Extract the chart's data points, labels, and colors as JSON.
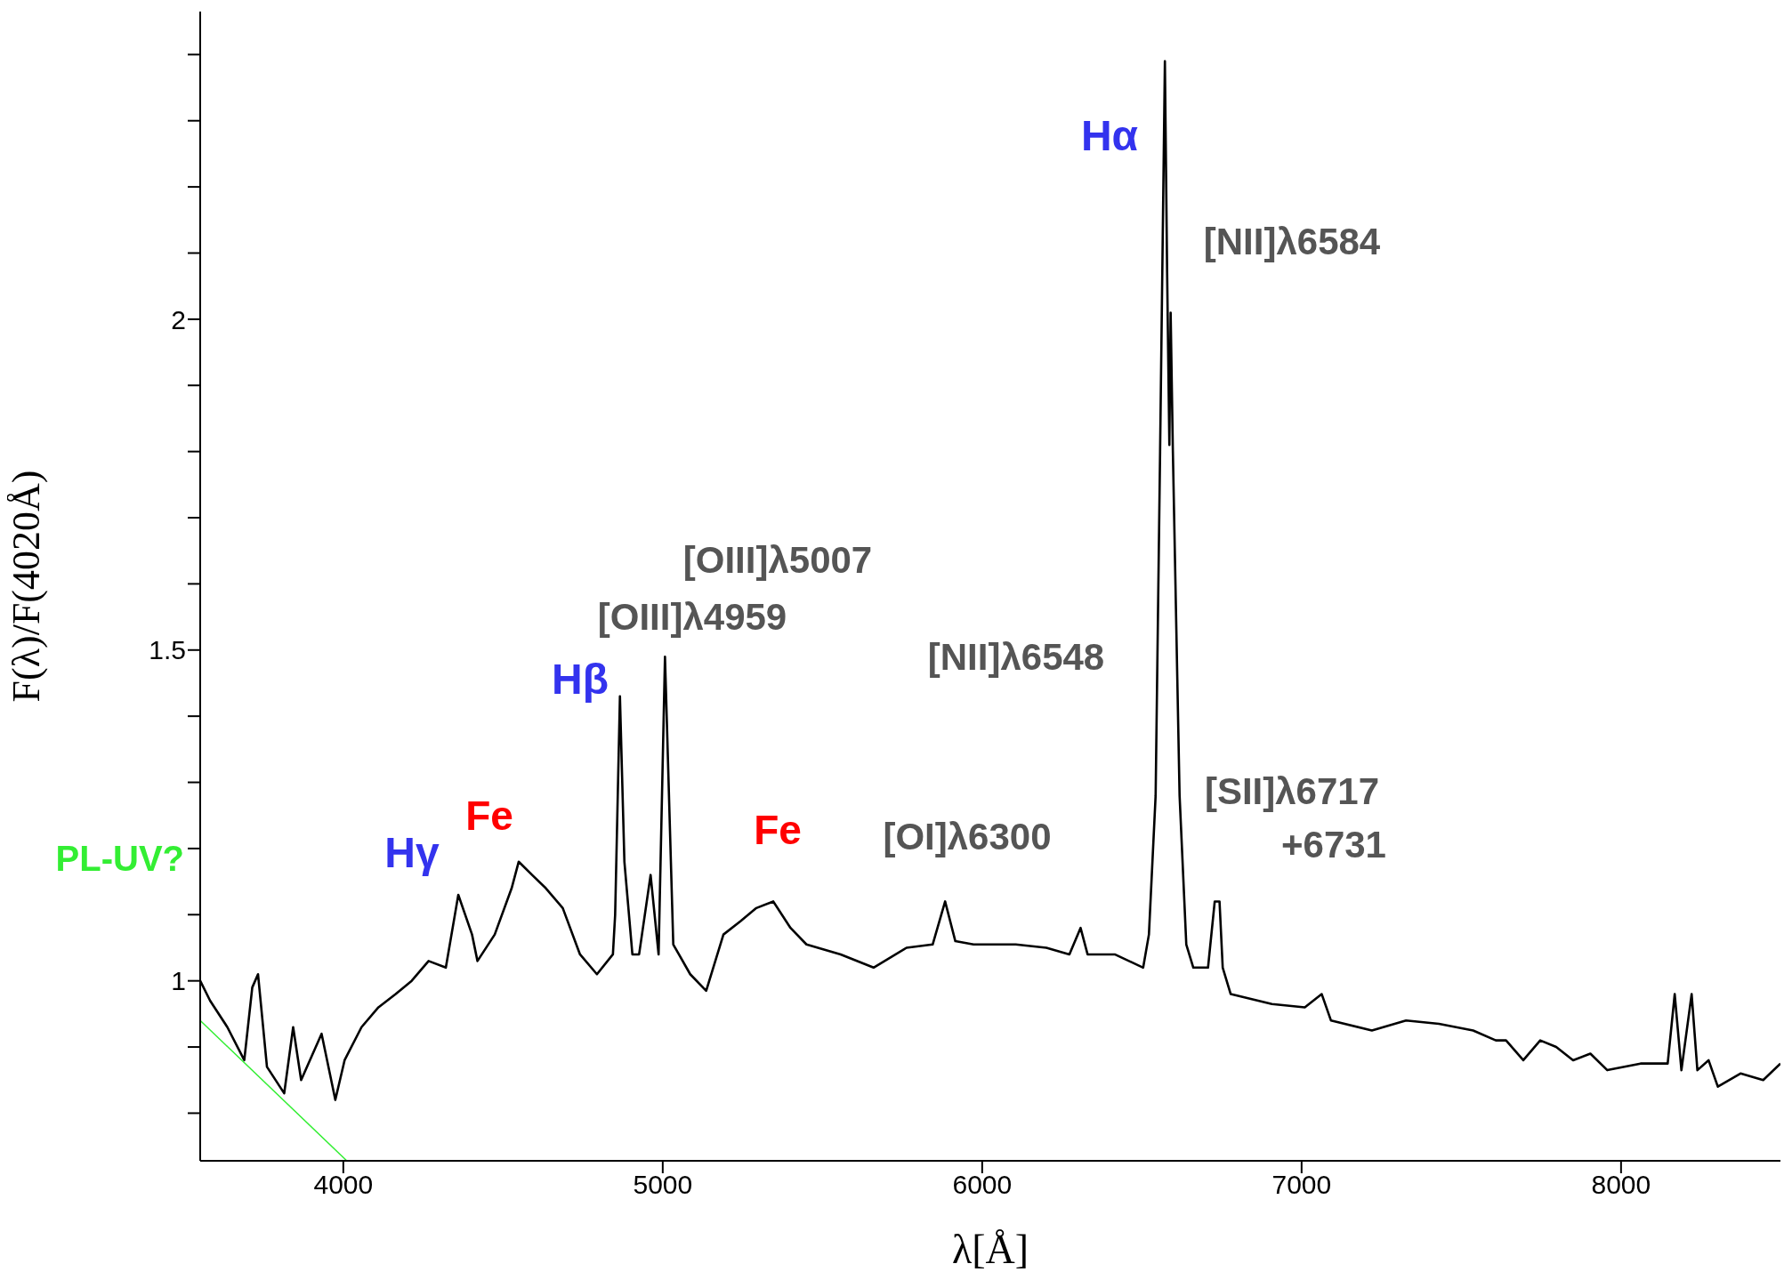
{
  "chart_data": {
    "type": "line",
    "xlabel": "λ[Å]",
    "ylabel": "F(λ)/F(4020Å)",
    "xlim": [
      3552,
      8499
    ],
    "xticks": [
      4000,
      5000,
      6000,
      7000,
      8000
    ],
    "ylim": [
      0.728,
      2.465
    ],
    "yticks": [
      {
        "value": 0.8,
        "label": null
      },
      {
        "value": 0.9,
        "label": null
      },
      1,
      {
        "value": 1.1,
        "label": null
      },
      {
        "value": 1.2,
        "label": null
      },
      {
        "value": 1.3,
        "label": null
      },
      {
        "value": 1.4,
        "label": null
      },
      1.5,
      {
        "value": 1.6,
        "label": null
      },
      {
        "value": 1.7,
        "label": null
      },
      {
        "value": 1.8,
        "label": null
      },
      {
        "value": 1.9,
        "label": null
      },
      2,
      {
        "value": 2.1,
        "label": null
      },
      {
        "value": 2.2,
        "label": null
      },
      {
        "value": 2.3,
        "label": null
      },
      {
        "value": 2.4,
        "label": null
      }
    ],
    "grid": false,
    "legend": false,
    "marker": "none",
    "line_style": "solid",
    "series": [
      {
        "color": "#000000",
        "x": [
          3552,
          3583,
          3637,
          3690,
          3715,
          3733,
          3761,
          3815,
          3843,
          3868,
          3932,
          3975,
          4004,
          4057,
          4110,
          4164,
          4214,
          4267,
          4321,
          4360,
          4403,
          4420,
          4474,
          4527,
          4549,
          4591,
          4634,
          4687,
          4741,
          4794,
          4844,
          4851,
          4866,
          4880,
          4905,
          4926,
          4962,
          4987,
          5007,
          5033,
          5086,
          5136,
          5190,
          5243,
          5293,
          5346,
          5400,
          5450,
          5557,
          5660,
          5763,
          5845,
          5884,
          5916,
          5973,
          6105,
          6201,
          6273,
          6308,
          6330,
          6415,
          6504,
          6522,
          6543,
          6557,
          6572,
          6579,
          6586,
          6590,
          6597,
          6618,
          6639,
          6661,
          6707,
          6728,
          6743,
          6753,
          6778,
          6907,
          7010,
          7063,
          7092,
          7220,
          7327,
          7430,
          7537,
          7608,
          7640,
          7694,
          7747,
          7797,
          7850,
          7904,
          7957,
          8061,
          8146,
          8168,
          8189,
          8221,
          8239,
          8274,
          8303,
          8374,
          8445,
          8499
        ],
        "values": [
          1.0,
          0.97,
          0.93,
          0.88,
          0.99,
          1.01,
          0.87,
          0.83,
          0.93,
          0.85,
          0.92,
          0.82,
          0.88,
          0.93,
          0.96,
          0.98,
          1.0,
          1.03,
          1.02,
          1.13,
          1.07,
          1.03,
          1.07,
          1.14,
          1.18,
          1.16,
          1.14,
          1.11,
          1.04,
          1.01,
          1.04,
          1.1,
          1.43,
          1.18,
          1.04,
          1.04,
          1.16,
          1.04,
          1.49,
          1.055,
          1.01,
          0.985,
          1.07,
          1.09,
          1.11,
          1.12,
          1.08,
          1.055,
          1.04,
          1.02,
          1.05,
          1.055,
          1.12,
          1.06,
          1.055,
          1.055,
          1.05,
          1.04,
          1.08,
          1.04,
          1.04,
          1.02,
          1.07,
          1.28,
          1.8,
          2.39,
          2.07,
          1.81,
          2.01,
          1.8,
          1.28,
          1.055,
          1.02,
          1.02,
          1.12,
          1.12,
          1.02,
          0.98,
          0.965,
          0.96,
          0.98,
          0.94,
          0.925,
          0.94,
          0.935,
          0.925,
          0.91,
          0.91,
          0.88,
          0.91,
          0.9,
          0.88,
          0.89,
          0.865,
          0.875,
          0.875,
          0.98,
          0.865,
          0.98,
          0.865,
          0.88,
          0.84,
          0.86,
          0.85,
          0.875
        ]
      },
      {
        "name": "PL-UV?",
        "color": "#33ee33",
        "x": [
          3552,
          4011
        ],
        "values": [
          0.94,
          0.728
        ]
      }
    ],
    "annotations": [
      "Hα",
      "[NII]λ6584",
      "[OIII]λ5007",
      "[OIII]λ4959",
      "Hβ",
      "[NII]λ6548",
      "[SII]λ6717",
      "+6731",
      "[OI]λ6300",
      "Fe",
      "Fe",
      "Hγ"
    ]
  }
}
